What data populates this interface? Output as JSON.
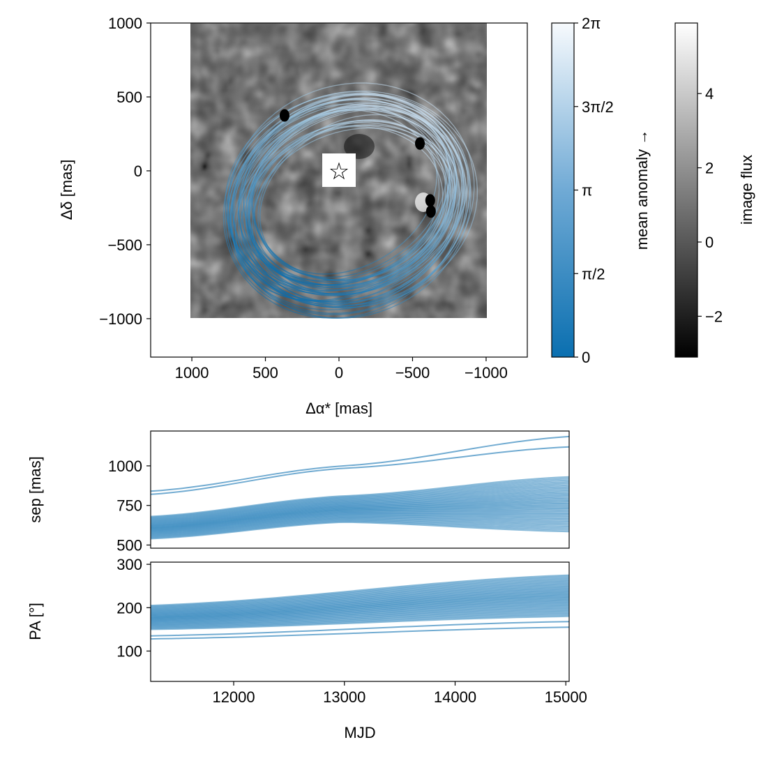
{
  "colors": {
    "orbit_dark": "#0a6fb0",
    "orbit_light": "#c9dff0",
    "axis": "#000000",
    "points": "#000000",
    "background": "#ffffff"
  },
  "chart_data": [
    {
      "id": "sky",
      "type": "scatter",
      "title": "",
      "xlabel": "Δα* [mas]",
      "ylabel": "Δδ [mas]",
      "xlim": [
        1280,
        -1280
      ],
      "ylim": [
        -1260,
        1000
      ],
      "xticks": [
        {
          "value": 1000,
          "label": "1000"
        },
        {
          "value": 500,
          "label": "500"
        },
        {
          "value": 0,
          "label": "0"
        },
        {
          "value": -500,
          "label": "−500"
        },
        {
          "value": -1000,
          "label": "−1000"
        }
      ],
      "yticks": [
        {
          "value": 1000,
          "label": "1000"
        },
        {
          "value": 500,
          "label": "500"
        },
        {
          "value": 0,
          "label": "0"
        },
        {
          "value": -500,
          "label": "−500"
        },
        {
          "value": -1000,
          "label": "−1000"
        }
      ],
      "image_extent": {
        "x": [
          1000,
          -1000
        ],
        "y": [
          -1000,
          1000
        ]
      },
      "star": {
        "x": 0,
        "y": 0,
        "symbol": "☆"
      },
      "orbit_family": {
        "count": 40,
        "semi_major_range": [
          640,
          860
        ],
        "center": [
          -65,
          -145
        ]
      },
      "astrometry": [
        {
          "x": 370,
          "y": 375
        },
        {
          "x": -550,
          "y": 185
        },
        {
          "x": -620,
          "y": -200
        },
        {
          "x": -625,
          "y": -275
        }
      ]
    },
    {
      "id": "sep",
      "type": "line",
      "xlabel": "",
      "ylabel": "sep [mas]",
      "xlim": [
        11250,
        15030
      ],
      "ylim": [
        480,
        1220
      ],
      "yticks": [
        {
          "value": 500,
          "label": "500"
        },
        {
          "value": 750,
          "label": "750"
        },
        {
          "value": 1000,
          "label": "1000"
        }
      ],
      "series": [
        {
          "name": "band_upper",
          "x": [
            11250,
            13000,
            15030
          ],
          "values": [
            680,
            810,
            930
          ]
        },
        {
          "name": "band_lower",
          "x": [
            11250,
            13000,
            15030
          ],
          "values": [
            540,
            645,
            585
          ]
        },
        {
          "name": "outlier_1",
          "x": [
            11250,
            13000,
            15030
          ],
          "values": [
            820,
            985,
            1120
          ]
        },
        {
          "name": "outlier_2",
          "x": [
            11250,
            13000,
            15030
          ],
          "values": [
            840,
            1000,
            1185
          ]
        }
      ]
    },
    {
      "id": "pa",
      "type": "line",
      "xlabel": "MJD",
      "ylabel": "PA [°]",
      "xlim": [
        11250,
        15030
      ],
      "ylim": [
        30,
        305
      ],
      "xticks": [
        {
          "value": 12000,
          "label": "12000"
        },
        {
          "value": 13000,
          "label": "13000"
        },
        {
          "value": 14000,
          "label": "14000"
        },
        {
          "value": 15000,
          "label": "15000"
        }
      ],
      "yticks": [
        {
          "value": 100,
          "label": "100"
        },
        {
          "value": 200,
          "label": "200"
        },
        {
          "value": 300,
          "label": "300"
        }
      ],
      "series": [
        {
          "name": "band_upper",
          "x": [
            11250,
            15030
          ],
          "values": [
            205,
            275
          ]
        },
        {
          "name": "band_lower",
          "x": [
            11250,
            15030
          ],
          "values": [
            150,
            180
          ]
        },
        {
          "name": "outlier_1",
          "x": [
            11250,
            15030
          ],
          "values": [
            135,
            168
          ]
        },
        {
          "name": "outlier_2",
          "x": [
            11250,
            15030
          ],
          "values": [
            128,
            155
          ]
        }
      ]
    }
  ],
  "colorbars": [
    {
      "label": "mean anomaly →",
      "range": [
        0,
        6.2832
      ],
      "ticks": [
        {
          "value": 0,
          "label": "0"
        },
        {
          "value": 1.5708,
          "label": "π/2"
        },
        {
          "value": 3.1416,
          "label": "π"
        },
        {
          "value": 4.7124,
          "label": "3π/2"
        },
        {
          "value": 6.2832,
          "label": "2π"
        }
      ]
    },
    {
      "label": "image flux",
      "range": [
        -3.1,
        5.9
      ],
      "ticks": [
        {
          "value": -2,
          "label": "−2"
        },
        {
          "value": 0,
          "label": "0"
        },
        {
          "value": 2,
          "label": "2"
        },
        {
          "value": 4,
          "label": "4"
        }
      ]
    }
  ]
}
